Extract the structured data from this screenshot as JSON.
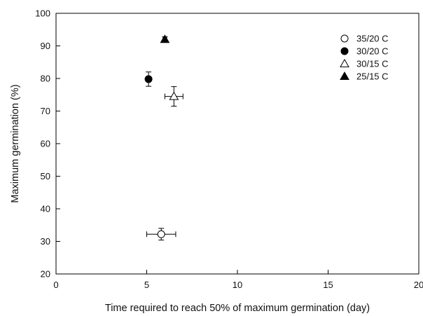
{
  "chart_data": {
    "type": "scatter",
    "title": "",
    "xlabel": "Time required to reach 50% of maximum germination (day)",
    "ylabel": "Maximum germination (%)",
    "xlim": [
      0,
      20
    ],
    "ylim": [
      20,
      100
    ],
    "x_ticks": [
      0,
      5,
      10,
      15,
      20
    ],
    "y_ticks": [
      20,
      30,
      40,
      50,
      60,
      70,
      80,
      90,
      100
    ],
    "grid": false,
    "legend_position": "top-right",
    "series": [
      {
        "name": "35/20 C",
        "marker": "circle-open",
        "points": [
          {
            "x": 5.8,
            "y": 32.2,
            "x_err": 0.8,
            "y_err": 1.8
          }
        ]
      },
      {
        "name": "30/20 C",
        "marker": "circle-filled",
        "points": [
          {
            "x": 5.1,
            "y": 79.8,
            "x_err": 0.1,
            "y_err": 2.2
          }
        ]
      },
      {
        "name": "30/15 C",
        "marker": "triangle-open",
        "points": [
          {
            "x": 6.5,
            "y": 74.5,
            "x_err": 0.5,
            "y_err": 3.0
          }
        ]
      },
      {
        "name": "25/15 C",
        "marker": "triangle-filled",
        "points": [
          {
            "x": 6.0,
            "y": 92.0,
            "x_err": 0.1,
            "y_err": 0.8
          }
        ]
      }
    ]
  }
}
